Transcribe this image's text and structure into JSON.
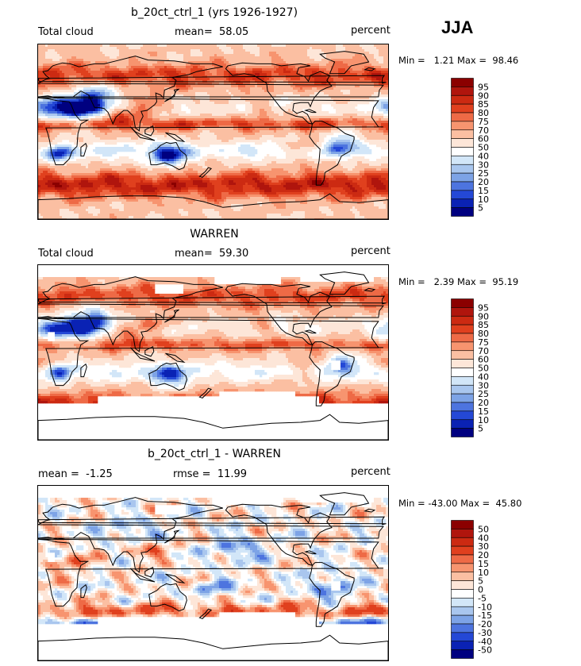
{
  "season": "JJA",
  "panels": [
    {
      "title": "b_20ct_ctrl_1 (yrs 1926-1927)",
      "left_label": "Total cloud",
      "stat_label": "mean=",
      "stat_value": "58.05",
      "right_label": "percent",
      "min_label": "Min =",
      "min_value": "1.21",
      "max_label": "Max =",
      "max_value": "98.46",
      "kind": "abs",
      "masked": false
    },
    {
      "title": "WARREN",
      "left_label": "Total cloud",
      "stat_label": "mean=",
      "stat_value": "59.30",
      "right_label": "percent",
      "min_label": "Min =",
      "min_value": "2.39",
      "max_label": "Max =",
      "max_value": "95.19",
      "kind": "abs",
      "masked": true
    },
    {
      "title": "b_20ct_ctrl_1 - WARREN",
      "left_label": "mean =",
      "left_value": "-1.25",
      "stat_label": "rmse =",
      "stat_value": "11.99",
      "right_label": "percent",
      "min_label": "Min =",
      "min_value": "-43.00",
      "max_label": "Max =",
      "max_value": "45.80",
      "kind": "diff",
      "masked": true
    }
  ],
  "colorbars": {
    "abs": {
      "labels": [
        "95",
        "90",
        "85",
        "80",
        "75",
        "70",
        "60",
        "50",
        "40",
        "30",
        "25",
        "20",
        "15",
        "10",
        "5"
      ],
      "colors": [
        "#8b0000",
        "#b0150d",
        "#cc2a12",
        "#e0401e",
        "#ee6a46",
        "#f7946f",
        "#fbbfa2",
        "#fde6d8",
        "#ffffff",
        "#d2e6f8",
        "#a9c6ee",
        "#7da3e6",
        "#4d74df",
        "#2448d6",
        "#0a22b4",
        "#000080"
      ]
    },
    "diff": {
      "labels": [
        "50",
        "40",
        "30",
        "20",
        "15",
        "10",
        "5",
        "0",
        "-5",
        "-10",
        "-15",
        "-20",
        "-30",
        "-40",
        "-50"
      ],
      "colors": [
        "#8b0000",
        "#b0150d",
        "#cc2a12",
        "#e0401e",
        "#ee6a46",
        "#f7946f",
        "#fbbfa2",
        "#fde6d8",
        "#ffffff",
        "#d2e6f8",
        "#a9c6ee",
        "#7da3e6",
        "#4d74df",
        "#2448d6",
        "#0a22b4",
        "#000080"
      ]
    }
  }
}
